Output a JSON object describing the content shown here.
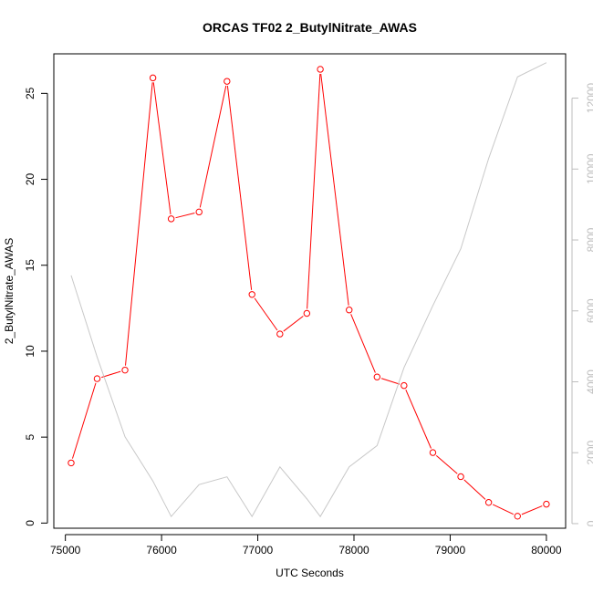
{
  "chart_data": {
    "type": "line",
    "title": "ORCAS TF02 2_ButylNitrate_AWAS",
    "xlabel": "UTC Seconds",
    "ylabel": "2_ButylNitrate_AWAS",
    "xlim": [
      74880,
      80200
    ],
    "ylim_left": [
      -0.3,
      27.3
    ],
    "ylim_right": [
      -130,
      13250
    ],
    "x_ticks": [
      75000,
      76000,
      77000,
      78000,
      79000,
      80000
    ],
    "y_ticks_left": [
      0,
      5,
      10,
      15,
      20,
      25
    ],
    "y_ticks_right": [
      0,
      2000,
      4000,
      6000,
      8000,
      10000,
      12000
    ],
    "grid": false,
    "series": [
      {
        "axis": "left",
        "color": "#ff0000",
        "marker": "open-circle",
        "x": [
          75060,
          75330,
          75620,
          75910,
          76100,
          76390,
          76680,
          76940,
          77230,
          77510,
          77650,
          77950,
          78240,
          78520,
          78820,
          79110,
          79400,
          79700,
          80000
        ],
        "values": [
          3.5,
          8.4,
          8.9,
          25.9,
          17.7,
          18.1,
          25.7,
          13.3,
          11.0,
          12.2,
          26.4,
          12.4,
          8.5,
          8.0,
          4.1,
          2.7,
          1.2,
          0.4,
          1.1
        ]
      },
      {
        "axis": "right",
        "color": "#c8c8c8",
        "marker": "none",
        "x": [
          75060,
          75330,
          75620,
          75910,
          76100,
          76390,
          76680,
          76940,
          77230,
          77510,
          77650,
          77950,
          78240,
          78520,
          78820,
          79110,
          79400,
          79700,
          80000
        ],
        "values": [
          7000,
          4700,
          2450,
          1200,
          200,
          1100,
          1320,
          200,
          1600,
          700,
          200,
          1600,
          2200,
          4400,
          6150,
          7750,
          10300,
          12600,
          13000
        ]
      }
    ]
  }
}
